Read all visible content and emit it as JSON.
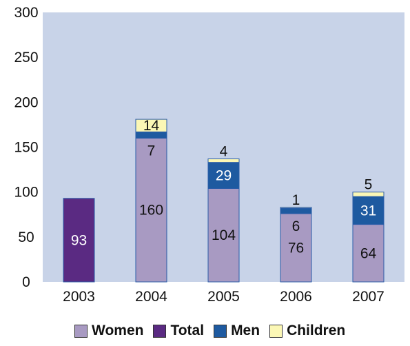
{
  "chart_data": {
    "type": "bar",
    "stacked": true,
    "categories": [
      "2003",
      "2004",
      "2005",
      "2006",
      "2007"
    ],
    "series": [
      {
        "name": "Women",
        "values": [
          0,
          160,
          104,
          76,
          64
        ],
        "color": "#A89AC2",
        "label_color": "#111111"
      },
      {
        "name": "Total",
        "values": [
          93,
          0,
          0,
          0,
          0
        ],
        "color": "#5A2A82",
        "label_color": "#ffffff"
      },
      {
        "name": "Men",
        "values": [
          0,
          7,
          29,
          6,
          31
        ],
        "color": "#1E5AA0",
        "label_color": "#ffffff"
      },
      {
        "name": "Children",
        "values": [
          0,
          14,
          4,
          1,
          5
        ],
        "color": "#FBF7B5",
        "label_color": "#111111"
      }
    ],
    "data_labels": [
      {
        "category": "2003",
        "series": "Total",
        "text": "93"
      },
      {
        "category": "2004",
        "series": "Women",
        "text": "160"
      },
      {
        "category": "2004",
        "series": "Men",
        "text": "7"
      },
      {
        "category": "2004",
        "series": "Children",
        "text": "14"
      },
      {
        "category": "2005",
        "series": "Women",
        "text": "104"
      },
      {
        "category": "2005",
        "series": "Men",
        "text": "29"
      },
      {
        "category": "2005",
        "series": "Children",
        "text": "4"
      },
      {
        "category": "2006",
        "series": "Women",
        "text": "76"
      },
      {
        "category": "2006",
        "series": "Men",
        "text": "6"
      },
      {
        "category": "2006",
        "series": "Children",
        "text": "1"
      },
      {
        "category": "2007",
        "series": "Women",
        "text": "64"
      },
      {
        "category": "2007",
        "series": "Men",
        "text": "31"
      },
      {
        "category": "2007",
        "series": "Children",
        "text": "5"
      }
    ],
    "ylim": [
      0,
      300
    ],
    "yticks": [
      0,
      50,
      100,
      150,
      200,
      250,
      300
    ],
    "xlabel": "",
    "ylabel": "",
    "title": "",
    "grid": false,
    "legend_position": "bottom",
    "plot_background": "#C8D3E8"
  },
  "legend": {
    "items": [
      {
        "label": "Women",
        "color": "#A89AC2"
      },
      {
        "label": "Total",
        "color": "#5A2A82"
      },
      {
        "label": "Men",
        "color": "#1E5AA0"
      },
      {
        "label": "Children",
        "color": "#FBF7B5"
      }
    ]
  }
}
